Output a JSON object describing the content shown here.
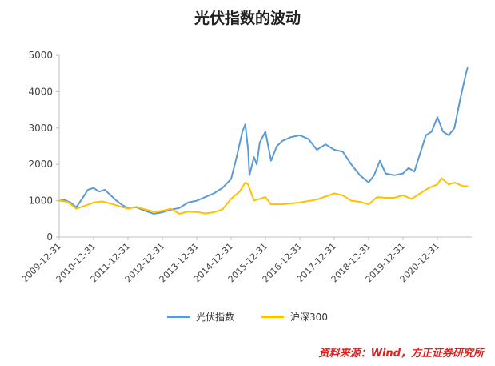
{
  "chart_data": {
    "type": "line",
    "title": "光伏指数的波动",
    "ylim": [
      0,
      5000
    ],
    "yticks": [
      "0",
      "1000",
      "2000",
      "3000",
      "4000",
      "5000"
    ],
    "x_tick_labels": [
      "2009-12-31",
      "2010-12-31",
      "2011-12-31",
      "2012-12-31",
      "2013-12-31",
      "2014-12-31",
      "2015-12-31",
      "2016-12-31",
      "2017-12-31",
      "2018-12-31",
      "2019-12-31",
      "2020-12-31"
    ],
    "x_range": [
      "2009-12-31",
      "2021-12-31"
    ],
    "grid": false,
    "legend_position": "bottom",
    "series": [
      {
        "name": "光伏指数",
        "color": "#5b9bd5",
        "points": [
          [
            "2009-12-31",
            1000
          ],
          [
            "2010-02-28",
            1020
          ],
          [
            "2010-04-30",
            950
          ],
          [
            "2010-06-30",
            820
          ],
          [
            "2010-08-31",
            1050
          ],
          [
            "2010-10-31",
            1300
          ],
          [
            "2010-12-31",
            1350
          ],
          [
            "2011-02-28",
            1250
          ],
          [
            "2011-04-30",
            1300
          ],
          [
            "2011-06-30",
            1150
          ],
          [
            "2011-08-31",
            1000
          ],
          [
            "2011-10-31",
            880
          ],
          [
            "2011-12-31",
            800
          ],
          [
            "2012-03-31",
            820
          ],
          [
            "2012-06-30",
            720
          ],
          [
            "2012-09-30",
            640
          ],
          [
            "2012-12-31",
            680
          ],
          [
            "2013-03-31",
            750
          ],
          [
            "2013-06-30",
            800
          ],
          [
            "2013-09-30",
            950
          ],
          [
            "2013-12-31",
            1000
          ],
          [
            "2014-03-31",
            1100
          ],
          [
            "2014-06-30",
            1200
          ],
          [
            "2014-09-30",
            1350
          ],
          [
            "2014-12-31",
            1600
          ],
          [
            "2015-02-28",
            2200
          ],
          [
            "2015-04-30",
            2900
          ],
          [
            "2015-05-31",
            3100
          ],
          [
            "2015-06-30",
            2400
          ],
          [
            "2015-07-15",
            1700
          ],
          [
            "2015-08-31",
            2200
          ],
          [
            "2015-09-30",
            2000
          ],
          [
            "2015-10-31",
            2600
          ],
          [
            "2015-12-31",
            2900
          ],
          [
            "2016-02-29",
            2100
          ],
          [
            "2016-04-30",
            2500
          ],
          [
            "2016-06-30",
            2650
          ],
          [
            "2016-09-30",
            2750
          ],
          [
            "2016-12-31",
            2800
          ],
          [
            "2017-03-31",
            2700
          ],
          [
            "2017-06-30",
            2400
          ],
          [
            "2017-09-30",
            2550
          ],
          [
            "2017-12-31",
            2400
          ],
          [
            "2018-03-31",
            2350
          ],
          [
            "2018-06-30",
            2000
          ],
          [
            "2018-09-30",
            1700
          ],
          [
            "2018-12-31",
            1500
          ],
          [
            "2019-02-28",
            1700
          ],
          [
            "2019-04-30",
            2100
          ],
          [
            "2019-06-30",
            1750
          ],
          [
            "2019-09-30",
            1700
          ],
          [
            "2019-12-31",
            1750
          ],
          [
            "2020-02-29",
            1900
          ],
          [
            "2020-04-30",
            1800
          ],
          [
            "2020-06-30",
            2300
          ],
          [
            "2020-08-31",
            2800
          ],
          [
            "2020-10-31",
            2900
          ],
          [
            "2020-12-31",
            3300
          ],
          [
            "2021-02-28",
            2900
          ],
          [
            "2021-04-30",
            2800
          ],
          [
            "2021-06-30",
            3000
          ],
          [
            "2021-08-31",
            3800
          ],
          [
            "2021-10-31",
            4500
          ],
          [
            "2021-11-15",
            4650
          ]
        ]
      },
      {
        "name": "沪深300",
        "color": "#ffc000",
        "points": [
          [
            "2009-12-31",
            1000
          ],
          [
            "2010-03-31",
            970
          ],
          [
            "2010-06-30",
            780
          ],
          [
            "2010-09-30",
            860
          ],
          [
            "2010-12-31",
            950
          ],
          [
            "2011-03-31",
            980
          ],
          [
            "2011-06-30",
            920
          ],
          [
            "2011-09-30",
            850
          ],
          [
            "2011-12-31",
            780
          ],
          [
            "2012-03-31",
            830
          ],
          [
            "2012-06-30",
            760
          ],
          [
            "2012-09-30",
            700
          ],
          [
            "2012-12-31",
            720
          ],
          [
            "2013-03-31",
            780
          ],
          [
            "2013-06-30",
            640
          ],
          [
            "2013-09-30",
            700
          ],
          [
            "2013-12-31",
            690
          ],
          [
            "2014-03-31",
            650
          ],
          [
            "2014-06-30",
            680
          ],
          [
            "2014-09-30",
            760
          ],
          [
            "2014-12-31",
            1050
          ],
          [
            "2015-03-31",
            1250
          ],
          [
            "2015-05-31",
            1500
          ],
          [
            "2015-06-30",
            1450
          ],
          [
            "2015-08-31",
            1000
          ],
          [
            "2015-12-31",
            1100
          ],
          [
            "2016-02-29",
            900
          ],
          [
            "2016-06-30",
            900
          ],
          [
            "2016-12-31",
            950
          ],
          [
            "2017-06-30",
            1030
          ],
          [
            "2017-12-31",
            1200
          ],
          [
            "2018-03-31",
            1150
          ],
          [
            "2018-06-30",
            1000
          ],
          [
            "2018-09-30",
            970
          ],
          [
            "2018-12-31",
            900
          ],
          [
            "2019-03-31",
            1100
          ],
          [
            "2019-06-30",
            1080
          ],
          [
            "2019-09-30",
            1080
          ],
          [
            "2019-12-31",
            1150
          ],
          [
            "2020-03-31",
            1050
          ],
          [
            "2020-06-30",
            1200
          ],
          [
            "2020-09-30",
            1350
          ],
          [
            "2020-12-31",
            1450
          ],
          [
            "2021-02-15",
            1620
          ],
          [
            "2021-04-30",
            1450
          ],
          [
            "2021-06-30",
            1500
          ],
          [
            "2021-09-30",
            1400
          ],
          [
            "2021-11-15",
            1400
          ]
        ]
      }
    ]
  },
  "source_note": "资料来源：Wind，方正证券研究所"
}
